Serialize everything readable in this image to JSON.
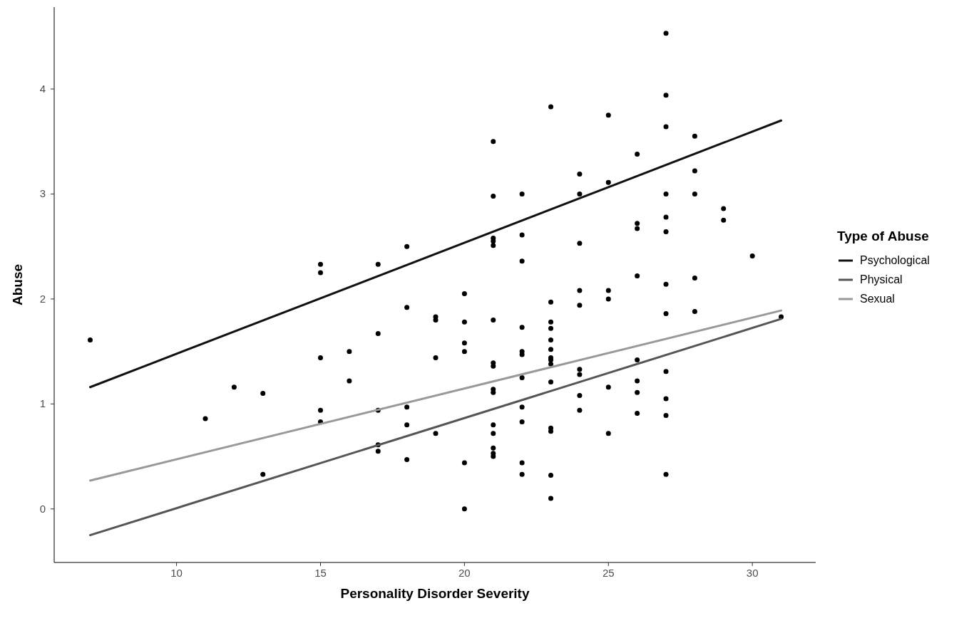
{
  "chart_data": {
    "type": "scatter",
    "xlabel": "Personality Disorder Severity",
    "ylabel": "Abuse",
    "legend_title": "Type of Abuse",
    "legend": "right",
    "grid": false,
    "xlim": [
      5.75,
      32.2
    ],
    "xticks": [
      10,
      15,
      20,
      25,
      30
    ],
    "ylim": [
      -0.51,
      4.78
    ],
    "yticks": [
      0,
      1,
      2,
      3,
      4
    ],
    "series": [
      {
        "marker": "circle",
        "color": "#000000",
        "x": [
          7,
          11,
          12,
          13,
          13,
          15,
          15,
          15,
          15,
          15,
          16,
          16,
          17,
          17,
          17,
          17,
          17,
          18,
          18,
          18,
          18,
          18,
          19,
          19,
          19,
          19,
          20,
          20,
          20,
          20,
          20,
          20,
          21,
          21,
          21,
          21,
          21,
          21,
          21,
          21,
          21,
          21,
          21,
          21,
          21,
          21,
          21,
          22,
          22,
          22,
          22,
          22,
          22,
          22,
          22,
          22,
          22,
          22,
          23,
          23,
          23,
          23,
          23,
          23,
          23,
          23,
          23,
          23,
          23,
          23,
          23,
          23,
          24,
          24,
          24,
          24,
          24,
          24,
          24,
          24,
          24,
          25,
          25,
          25,
          25,
          25,
          25,
          26,
          26,
          26,
          26,
          26,
          26,
          26,
          26,
          27,
          27,
          27,
          27,
          27,
          27,
          27,
          27,
          27,
          27,
          27,
          27,
          28,
          28,
          28,
          28,
          28,
          29,
          29,
          30,
          31
        ],
        "values": [
          1.61,
          0.86,
          1.16,
          1.1,
          0.33,
          2.33,
          2.25,
          1.44,
          0.94,
          0.83,
          1.5,
          1.22,
          2.33,
          1.67,
          0.94,
          0.61,
          0.55,
          2.5,
          1.92,
          0.97,
          0.8,
          0.47,
          1.83,
          1.8,
          1.44,
          0.72,
          2.05,
          1.78,
          1.58,
          1.5,
          0.44,
          0,
          3.5,
          2.98,
          2.58,
          2.55,
          2.51,
          1.8,
          1.39,
          1.36,
          1.14,
          1.11,
          0.8,
          0.72,
          0.58,
          0.53,
          0.5,
          3,
          2.61,
          2.36,
          1.73,
          1.5,
          1.47,
          1.25,
          0.97,
          0.83,
          0.44,
          0.33,
          3.83,
          1.97,
          1.78,
          1.72,
          1.61,
          1.52,
          1.44,
          1.42,
          1.38,
          1.21,
          0.77,
          0.74,
          0.32,
          0.1,
          3.19,
          3,
          2.53,
          2.08,
          1.94,
          1.33,
          1.28,
          1.08,
          0.94,
          3.75,
          3.11,
          2.08,
          2,
          1.16,
          0.72,
          3.38,
          2.72,
          2.67,
          2.22,
          1.42,
          1.22,
          1.11,
          0.91,
          4.53,
          3.94,
          3.64,
          3,
          2.78,
          2.64,
          2.14,
          1.86,
          1.31,
          1.05,
          0.89,
          0.33,
          3.55,
          3.22,
          3,
          2.2,
          1.88,
          2.86,
          2.75,
          2.41,
          1.83
        ]
      },
      {
        "type": "line",
        "name": "Psychological",
        "color": "#111111",
        "x": [
          7,
          31
        ],
        "values": [
          1.16,
          3.7
        ]
      },
      {
        "type": "line",
        "name": "Physical",
        "color": "#555555",
        "x": [
          7,
          31
        ],
        "values": [
          -0.25,
          1.81
        ]
      },
      {
        "type": "line",
        "name": "Sexual",
        "color": "#999999",
        "x": [
          7,
          31
        ],
        "values": [
          0.27,
          1.89
        ]
      }
    ]
  }
}
